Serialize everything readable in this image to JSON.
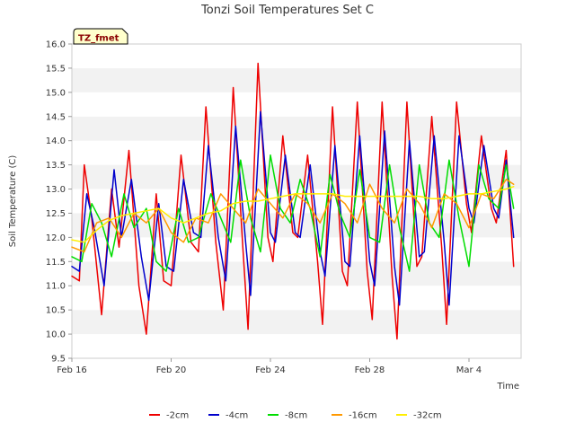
{
  "chart_data": {
    "type": "line",
    "title": "Tonzi Soil Temperatures Set C",
    "xlabel": "Time",
    "ylabel": "Soil Temperature (C)",
    "ylim": [
      9.5,
      16.0
    ],
    "xlim_days": [
      0,
      18.1
    ],
    "y_ticks": [
      "9.5",
      "10.0",
      "10.5",
      "11.0",
      "11.5",
      "12.0",
      "12.5",
      "13.0",
      "13.5",
      "14.0",
      "14.5",
      "15.0",
      "15.5",
      "16.0"
    ],
    "x_ticks": [
      {
        "label": "Feb 16",
        "day": 0
      },
      {
        "label": "Feb 20",
        "day": 4
      },
      {
        "label": "Feb 24",
        "day": 8
      },
      {
        "label": "Feb 28",
        "day": 12
      },
      {
        "label": "Mar 4",
        "day": 16
      }
    ],
    "grid": "horizontal-bands",
    "legend_position": "bottom",
    "badge": "TZ_fmet",
    "series": [
      {
        "name": "-2cm",
        "color": "#ee0000",
        "x": [
          0,
          0.3,
          0.5,
          0.8,
          1.2,
          1.6,
          1.9,
          2.3,
          2.7,
          3.0,
          3.4,
          3.7,
          4.0,
          4.4,
          4.8,
          5.1,
          5.4,
          5.8,
          6.1,
          6.5,
          6.9,
          7.1,
          7.5,
          7.9,
          8.1,
          8.5,
          8.9,
          9.1,
          9.5,
          9.9,
          10.1,
          10.5,
          10.9,
          11.1,
          11.5,
          11.9,
          12.1,
          12.5,
          12.9,
          13.1,
          13.5,
          13.9,
          14.1,
          14.5,
          14.9,
          15.1,
          15.5,
          15.9,
          16.1,
          16.5,
          16.9,
          17.1,
          17.5,
          17.8
        ],
        "y": [
          11.2,
          11.1,
          13.5,
          12.4,
          10.4,
          13.0,
          11.8,
          13.8,
          11.0,
          10.0,
          12.9,
          11.1,
          11.0,
          13.7,
          11.9,
          11.7,
          14.7,
          11.9,
          10.5,
          15.1,
          11.7,
          10.1,
          15.6,
          12.0,
          11.5,
          14.1,
          12.1,
          12.0,
          13.7,
          11.5,
          10.2,
          14.7,
          11.3,
          11.0,
          14.8,
          11.3,
          10.3,
          14.8,
          11.2,
          9.9,
          14.8,
          11.4,
          11.6,
          14.5,
          11.8,
          10.2,
          14.8,
          12.7,
          12.1,
          14.1,
          12.6,
          12.3,
          13.8,
          11.4
        ]
      },
      {
        "name": "-4cm",
        "color": "#0000cc",
        "x": [
          0,
          0.3,
          0.6,
          0.9,
          1.3,
          1.7,
          2.0,
          2.4,
          2.8,
          3.1,
          3.5,
          3.8,
          4.1,
          4.5,
          4.9,
          5.2,
          5.5,
          5.9,
          6.2,
          6.6,
          7.0,
          7.2,
          7.6,
          8.0,
          8.2,
          8.6,
          9.0,
          9.2,
          9.6,
          10.0,
          10.2,
          10.6,
          11.0,
          11.2,
          11.6,
          12.0,
          12.2,
          12.6,
          13.0,
          13.2,
          13.6,
          14.0,
          14.2,
          14.6,
          15.0,
          15.2,
          15.6,
          16.0,
          16.2,
          16.6,
          17.0,
          17.2,
          17.5,
          17.8
        ],
        "y": [
          11.4,
          11.3,
          12.9,
          12.2,
          11.0,
          13.4,
          12.0,
          13.2,
          11.6,
          10.7,
          12.7,
          11.4,
          11.3,
          13.2,
          12.1,
          12.0,
          13.9,
          12.0,
          11.1,
          14.3,
          11.9,
          10.8,
          14.6,
          12.1,
          11.9,
          13.7,
          12.1,
          12.0,
          13.5,
          11.7,
          11.2,
          13.9,
          11.5,
          11.4,
          14.1,
          11.5,
          11.0,
          14.2,
          11.4,
          10.6,
          14.0,
          11.6,
          11.7,
          14.1,
          11.9,
          10.6,
          14.1,
          12.6,
          12.3,
          13.9,
          12.6,
          12.4,
          13.6,
          12.0
        ]
      },
      {
        "name": "-8cm",
        "color": "#00dd00",
        "x": [
          0,
          0.4,
          0.8,
          1.2,
          1.6,
          2.1,
          2.5,
          3.0,
          3.4,
          3.8,
          4.3,
          4.7,
          5.1,
          5.6,
          6.0,
          6.4,
          6.8,
          7.2,
          7.6,
          8.0,
          8.4,
          8.8,
          9.2,
          9.6,
          10.0,
          10.4,
          10.8,
          11.2,
          11.6,
          12.0,
          12.4,
          12.8,
          13.2,
          13.6,
          14.0,
          14.4,
          14.8,
          15.2,
          15.6,
          16.0,
          16.4,
          16.8,
          17.2,
          17.5,
          17.8
        ],
        "y": [
          11.6,
          11.5,
          12.7,
          12.3,
          11.6,
          12.9,
          12.2,
          12.6,
          11.5,
          11.3,
          12.6,
          11.9,
          12.0,
          12.9,
          12.4,
          11.9,
          13.6,
          12.4,
          11.7,
          13.7,
          12.6,
          12.3,
          13.2,
          12.6,
          11.6,
          13.3,
          12.5,
          12.0,
          13.4,
          12.0,
          11.9,
          13.5,
          12.2,
          11.3,
          13.5,
          12.3,
          12.0,
          13.6,
          12.4,
          11.4,
          13.5,
          12.8,
          12.6,
          13.5,
          12.6
        ]
      },
      {
        "name": "-16cm",
        "color": "#ff9900",
        "x": [
          0,
          0.5,
          1.0,
          1.5,
          2.0,
          2.5,
          3.0,
          3.5,
          4.0,
          4.5,
          5.0,
          5.5,
          6.0,
          6.5,
          7.0,
          7.5,
          8.0,
          8.5,
          9.0,
          9.5,
          10.0,
          10.5,
          11.0,
          11.5,
          12.0,
          12.5,
          13.0,
          13.5,
          14.0,
          14.5,
          15.0,
          15.5,
          16.0,
          16.5,
          17.0,
          17.5,
          17.8
        ],
        "y": [
          11.8,
          11.7,
          12.3,
          12.4,
          12.0,
          12.5,
          12.3,
          12.6,
          12.1,
          11.9,
          12.4,
          12.3,
          12.9,
          12.6,
          12.3,
          13.0,
          12.7,
          12.4,
          12.9,
          12.7,
          12.3,
          12.9,
          12.7,
          12.3,
          13.1,
          12.6,
          12.3,
          13.0,
          12.7,
          12.2,
          12.9,
          12.7,
          12.2,
          12.9,
          12.8,
          13.2,
          13.1
        ]
      },
      {
        "name": "-32cm",
        "color": "#ffee00",
        "x": [
          0,
          0.5,
          1.0,
          1.5,
          2.0,
          2.5,
          3.0,
          3.5,
          4.0,
          4.5,
          5.0,
          5.5,
          6.0,
          6.5,
          7.0,
          7.5,
          8.0,
          8.5,
          9.0,
          9.5,
          10.0,
          10.5,
          11.0,
          11.5,
          12.0,
          12.5,
          13.0,
          13.5,
          14.0,
          14.5,
          15.0,
          15.5,
          16.0,
          16.5,
          17.0,
          17.5,
          17.8
        ],
        "y": [
          11.95,
          11.9,
          12.15,
          12.35,
          12.45,
          12.5,
          12.55,
          12.6,
          12.4,
          12.3,
          12.4,
          12.5,
          12.55,
          12.7,
          12.75,
          12.75,
          12.8,
          12.85,
          12.9,
          12.9,
          12.9,
          12.9,
          12.85,
          12.85,
          12.85,
          12.85,
          12.85,
          12.85,
          12.85,
          12.8,
          12.8,
          12.85,
          12.9,
          12.9,
          12.95,
          13.0,
          13.05
        ]
      }
    ]
  }
}
